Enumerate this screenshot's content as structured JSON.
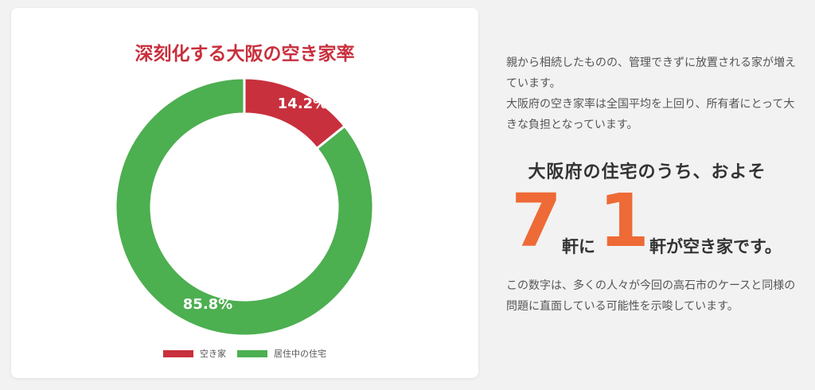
{
  "chart_data": {
    "type": "pie",
    "title": "深刻化する大阪の空き家率",
    "categories": [
      "空き家",
      "居住中の住宅"
    ],
    "values": [
      14.2,
      85.8
    ],
    "labels": [
      "14.2%",
      "85.8%"
    ],
    "colors": [
      "#c8303d",
      "#4caf50"
    ],
    "donut": true,
    "legend": "bottom"
  },
  "info": {
    "intro_lines": [
      "親から相続したものの、管理できずに放置される家が増えています。",
      "大阪府の空き家率は全国平均を上回り、所有者にとって大きな負担となっています。"
    ],
    "headline": "大阪府の住宅のうち、およそ",
    "ratio_num1": "7",
    "ratio_mid": "軒に",
    "ratio_num2": "1",
    "ratio_end": "軒が空き家です。",
    "outro": "この数字は、多くの人々が今回の高石市のケースと同様の問題に直面している可能性を示唆しています。"
  }
}
